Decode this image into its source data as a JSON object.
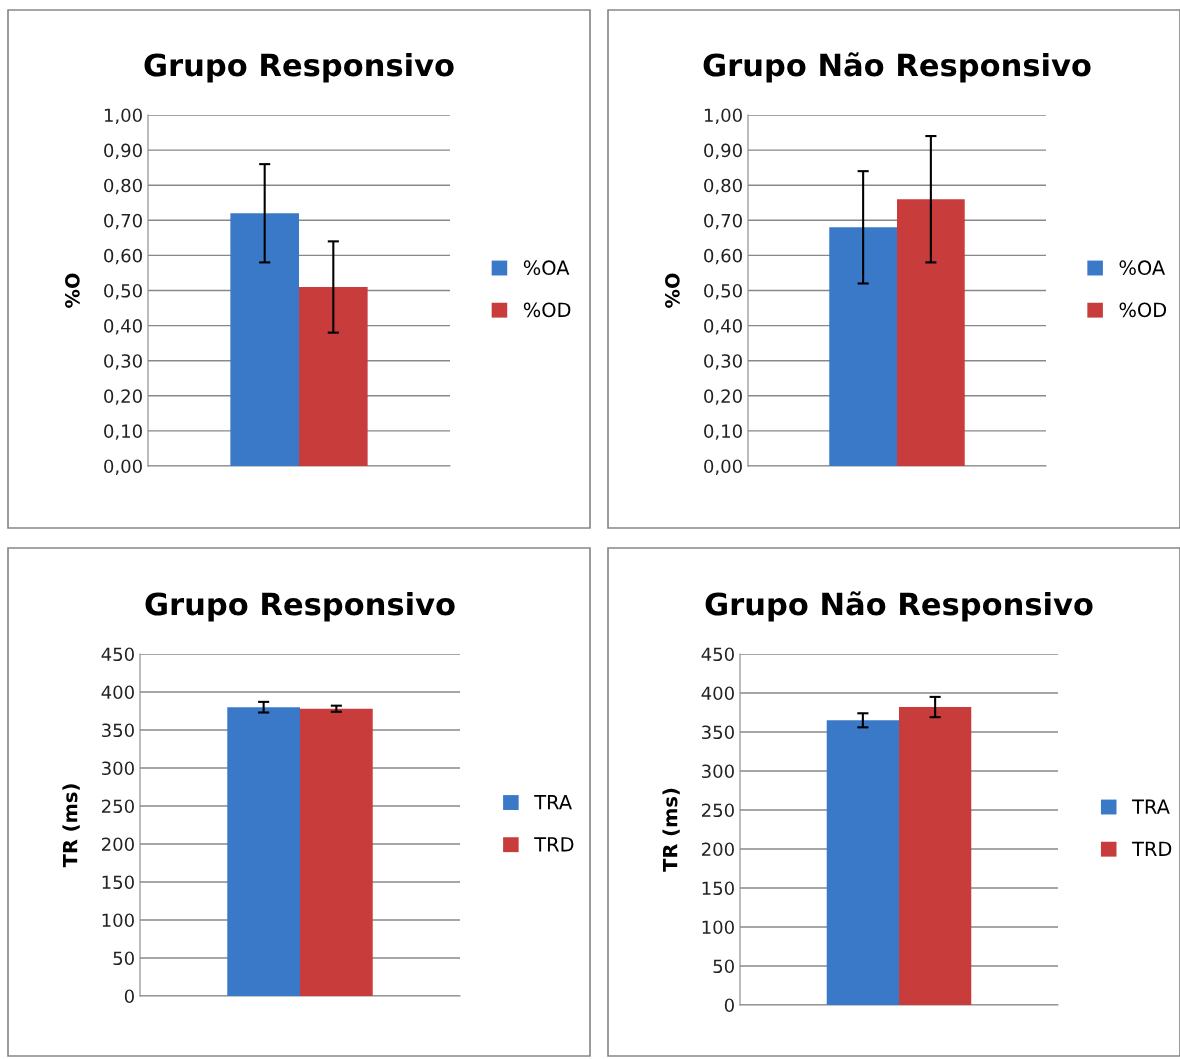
{
  "chart_data": [
    {
      "type": "bar",
      "title": "Grupo Responsivo",
      "ylabel": "%O",
      "categories": [
        null
      ],
      "series": [
        {
          "name": "%OA",
          "color": "#3a78c8",
          "values": [
            0.72
          ],
          "errors": [
            0.14
          ]
        },
        {
          "name": "%OD",
          "color": "#c83c3c",
          "values": [
            0.51
          ],
          "errors": [
            0.13
          ]
        }
      ],
      "ylim": [
        0,
        1.0
      ],
      "yticks": [
        {
          "value": 0,
          "label": "0,00"
        },
        {
          "value": 0.1,
          "label": "0,10"
        },
        {
          "value": 0.2,
          "label": "0,20"
        },
        {
          "value": 0.3,
          "label": "0,30"
        },
        {
          "value": 0.4,
          "label": "0,40"
        },
        {
          "value": 0.5,
          "label": "0,50"
        },
        {
          "value": 0.6,
          "label": "0,60"
        },
        {
          "value": 0.7,
          "label": "0,70"
        },
        {
          "value": 0.8,
          "label": "0,80"
        },
        {
          "value": 0.9,
          "label": "0,90"
        },
        {
          "value": 1.0,
          "label": "1,00"
        }
      ],
      "grid": "y",
      "legend": "right"
    },
    {
      "type": "bar",
      "title": "Grupo Não Responsivo",
      "ylabel": "%O",
      "categories": [
        null
      ],
      "series": [
        {
          "name": "%OA",
          "color": "#3a78c8",
          "values": [
            0.68
          ],
          "errors": [
            0.16
          ]
        },
        {
          "name": "%OD",
          "color": "#c83c3c",
          "values": [
            0.76
          ],
          "errors": [
            0.18
          ]
        }
      ],
      "ylim": [
        0,
        1.0
      ],
      "yticks": [
        {
          "value": 0,
          "label": "0,00"
        },
        {
          "value": 0.1,
          "label": "0,10"
        },
        {
          "value": 0.2,
          "label": "0,20"
        },
        {
          "value": 0.3,
          "label": "0,30"
        },
        {
          "value": 0.4,
          "label": "0,40"
        },
        {
          "value": 0.5,
          "label": "0,50"
        },
        {
          "value": 0.6,
          "label": "0,60"
        },
        {
          "value": 0.7,
          "label": "0,70"
        },
        {
          "value": 0.8,
          "label": "0,80"
        },
        {
          "value": 0.9,
          "label": "0,90"
        },
        {
          "value": 1.0,
          "label": "1,00"
        }
      ],
      "grid": "y",
      "legend": "right"
    },
    {
      "type": "bar",
      "title": "Grupo Responsivo",
      "ylabel": "TR (ms)",
      "categories": [
        null
      ],
      "series": [
        {
          "name": "TRA",
          "color": "#3a78c8",
          "values": [
            380
          ],
          "errors": [
            7
          ]
        },
        {
          "name": "TRD",
          "color": "#c83c3c",
          "values": [
            378
          ],
          "errors": [
            4
          ]
        }
      ],
      "ylim": [
        0,
        450
      ],
      "yticks": [
        0,
        50,
        100,
        150,
        200,
        250,
        300,
        350,
        400,
        450
      ],
      "grid": "y",
      "legend": "right"
    },
    {
      "type": "bar",
      "title": "Grupo Não Responsivo",
      "ylabel": "TR (ms)",
      "categories": [
        null
      ],
      "series": [
        {
          "name": "TRA",
          "color": "#3a78c8",
          "values": [
            365
          ],
          "errors": [
            9
          ]
        },
        {
          "name": "TRD",
          "color": "#c83c3c",
          "values": [
            382
          ],
          "errors": [
            13
          ]
        }
      ],
      "ylim": [
        0,
        450
      ],
      "yticks": [
        0,
        50,
        100,
        150,
        200,
        250,
        300,
        350,
        400,
        450
      ],
      "grid": "y",
      "legend": "right"
    }
  ]
}
